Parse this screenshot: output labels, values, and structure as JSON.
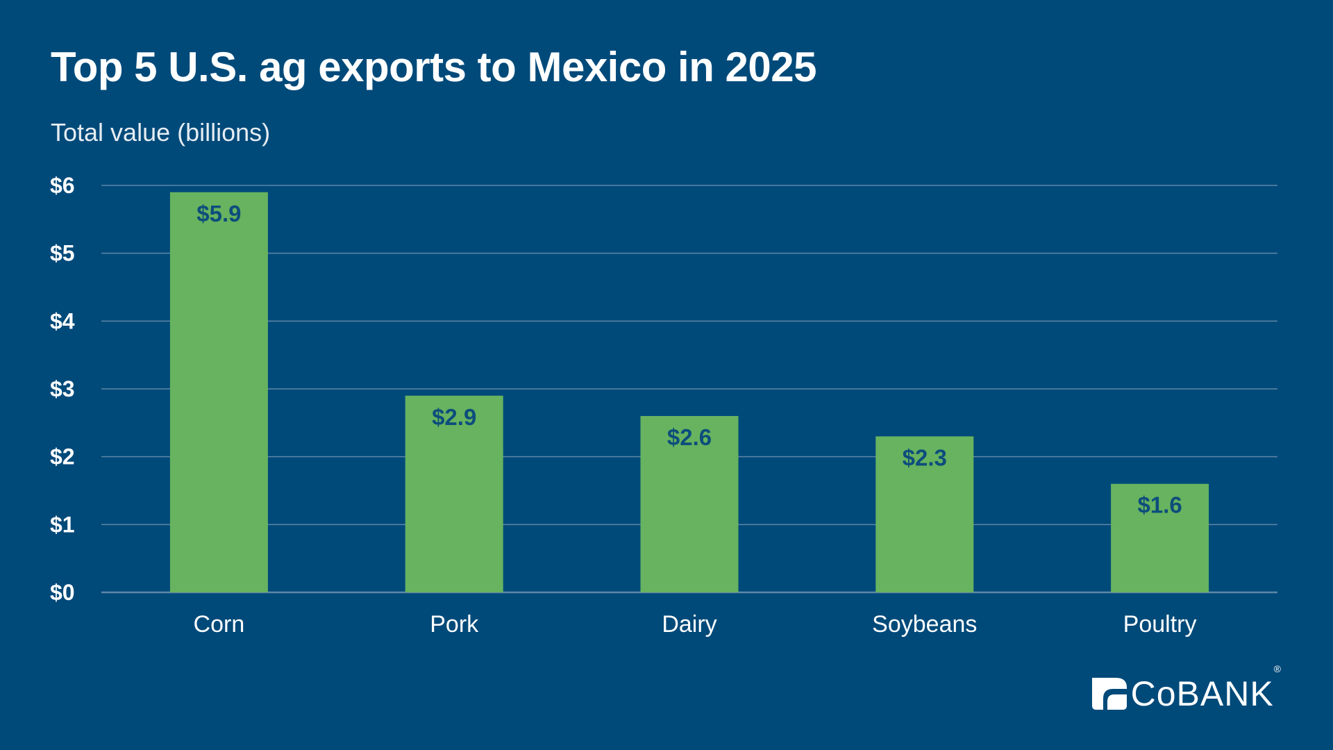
{
  "chart_data": {
    "type": "bar",
    "title": "Top 5 U.S. ag exports to Mexico in 2025",
    "subtitle": "Total value (billions)",
    "categories": [
      "Corn",
      "Pork",
      "Dairy",
      "Soybeans",
      "Poultry"
    ],
    "values": [
      5.9,
      2.9,
      2.6,
      2.3,
      1.6
    ],
    "data_labels": [
      "$5.9",
      "$2.9",
      "$2.6",
      "$2.3",
      "$1.6"
    ],
    "yticks": [
      0,
      1,
      2,
      3,
      4,
      5,
      6
    ],
    "ytick_labels": [
      "$0",
      "$1",
      "$2",
      "$3",
      "$4",
      "$5",
      "$6"
    ],
    "ylim": [
      0,
      6
    ],
    "grid": true,
    "bar_color": "#67b35f",
    "label_color": "#0d4d7c",
    "gridline_color": "#5f86a6",
    "background_color": "#004a7a"
  },
  "brand": {
    "logo_text": "CoBANK",
    "registered_mark": "®"
  }
}
